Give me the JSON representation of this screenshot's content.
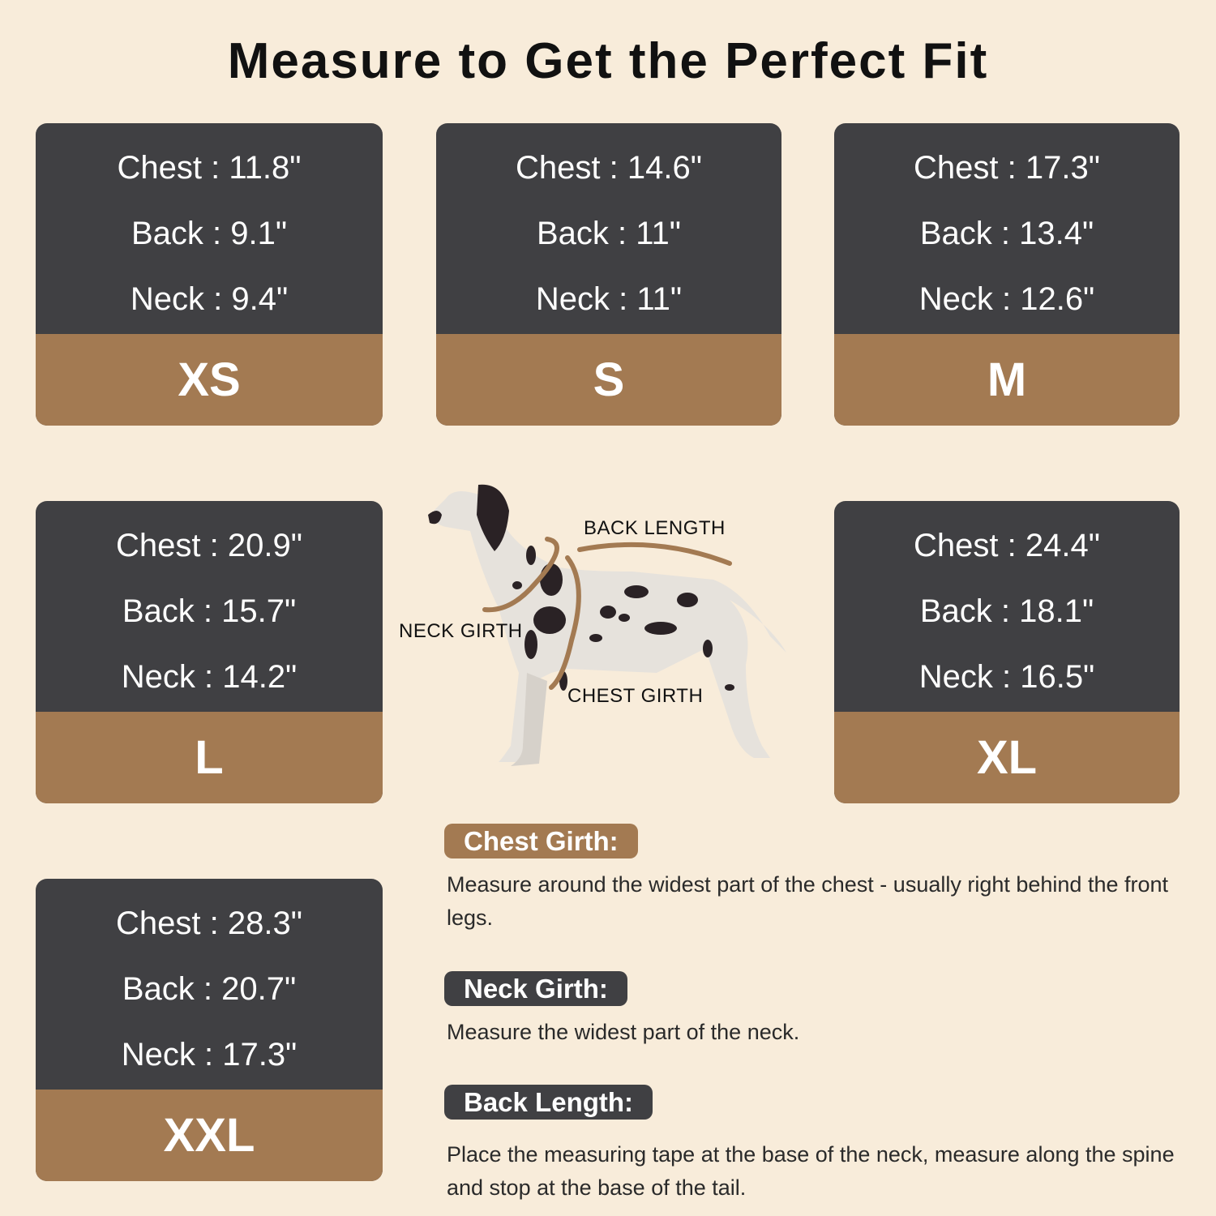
{
  "title": "Measure to Get the Perfect Fit",
  "colors": {
    "background": "#f8ecda",
    "card_dark": "#404043",
    "card_accent": "#a37a52"
  },
  "sizes": [
    {
      "size": "XS",
      "chest": "Chest : 11.8\"",
      "back": "Back : 9.1\"",
      "neck": "Neck : 9.4\""
    },
    {
      "size": "S",
      "chest": "Chest : 14.6\"",
      "back": "Back : 11\"",
      "neck": "Neck : 11\""
    },
    {
      "size": "M",
      "chest": "Chest : 17.3\"",
      "back": "Back : 13.4\"",
      "neck": "Neck : 12.6\""
    },
    {
      "size": "L",
      "chest": "Chest : 20.9\"",
      "back": "Back : 15.7\"",
      "neck": "Neck : 14.2\""
    },
    {
      "size": "XL",
      "chest": "Chest : 24.4\"",
      "back": "Back : 18.1\"",
      "neck": "Neck : 16.5\""
    },
    {
      "size": "XXL",
      "chest": "Chest : 28.3\"",
      "back": "Back : 20.7\"",
      "neck": "Neck : 17.3\""
    }
  ],
  "diagram": {
    "back_length": "BACK LENGTH",
    "neck_girth": "NECK GIRTH",
    "chest_girth": "CHEST GIRTH"
  },
  "guide": [
    {
      "label": "Chest Girth:",
      "text": "Measure around the widest part of the chest - usually right behind the front legs."
    },
    {
      "label": "Neck Girth:",
      "text": "Measure the widest part of the neck."
    },
    {
      "label": "Back Length:",
      "text": "Place the measuring tape at the base of the neck, measure along the spine and stop at the base of the tail."
    }
  ]
}
